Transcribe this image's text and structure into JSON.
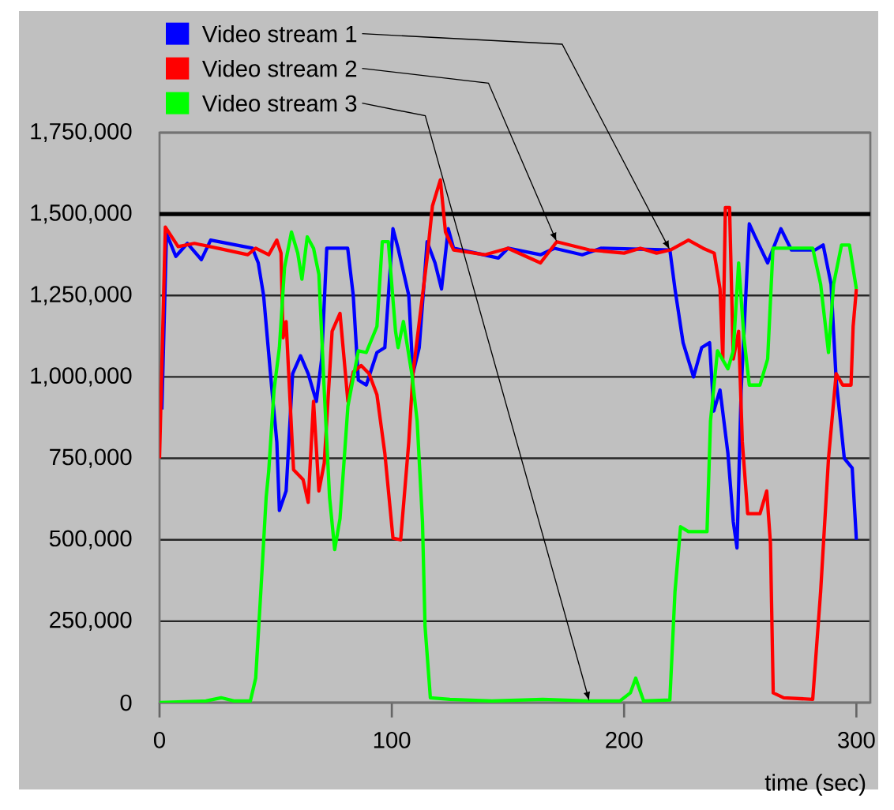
{
  "chart_data": {
    "type": "line",
    "xlabel": "time (sec)",
    "xlim": [
      0,
      306
    ],
    "xticks": [
      0,
      100,
      200,
      300
    ],
    "ylim": [
      0,
      1750000
    ],
    "yticks": [
      {
        "value": 0,
        "label": "0"
      },
      {
        "value": 250000,
        "label": "250,000"
      },
      {
        "value": 500000,
        "label": "500,000"
      },
      {
        "value": 750000,
        "label": "750,000"
      },
      {
        "value": 1000000,
        "label": "1,000,000"
      },
      {
        "value": 1250000,
        "label": "1,250,000"
      },
      {
        "value": 1500000,
        "label": "1,500,000"
      },
      {
        "value": 1750000,
        "label": "1,750,000"
      }
    ],
    "grid": "y",
    "legend": "top left",
    "ref_lines": [
      {
        "axis": "y",
        "value": 1500000,
        "color": "#000000"
      }
    ],
    "series": [
      {
        "name": "Video stream 1",
        "color": "#0000ff",
        "x": [
          1,
          3,
          7,
          12,
          18,
          22,
          40,
          42.5,
          44.8,
          48.2,
          50.5,
          51.6,
          54.5,
          57.3,
          60.7,
          64,
          67.5,
          69.8,
          72,
          81,
          83.4,
          85.6,
          89,
          93.6,
          97,
          100.5,
          102.7,
          107.3,
          109.1,
          111.8,
          115.2,
          118.6,
          121.4,
          124.3,
          126.6,
          145.9,
          150,
          164,
          170,
          182,
          190,
          219.7,
          221.9,
          225.4,
          229.9,
          233.4,
          236.8,
          238.6,
          241.3,
          244.7,
          247,
          248.6,
          250.4,
          253.9,
          256.1,
          261.8,
          267.5,
          272,
          282.3,
          285.7,
          289.1,
          291.3,
          294.8,
          298.2,
          300
        ],
        "values": [
          900000,
          1440000,
          1370000,
          1410000,
          1360000,
          1420000,
          1395000,
          1350000,
          1250000,
          975000,
          800000,
          590000,
          650000,
          1010000,
          1065000,
          1010000,
          925000,
          1055000,
          1395000,
          1395000,
          1250000,
          990000,
          975000,
          1075000,
          1090000,
          1455000,
          1395000,
          1250000,
          1010000,
          1090000,
          1415000,
          1350000,
          1270000,
          1455000,
          1395000,
          1365000,
          1395000,
          1375000,
          1395000,
          1375000,
          1395000,
          1390000,
          1270000,
          1105000,
          1000000,
          1090000,
          1105000,
          895000,
          960000,
          765000,
          555000,
          475000,
          960000,
          1470000,
          1435000,
          1350000,
          1455000,
          1390000,
          1390000,
          1405000,
          1285000,
          990000,
          750000,
          720000,
          500000
        ]
      },
      {
        "name": "Video stream 2",
        "color": "#ff0000",
        "x": [
          0,
          2.5,
          8,
          15,
          25,
          38,
          41.4,
          47,
          50.5,
          52.3,
          53.2,
          54.5,
          56.2,
          57.7,
          61.8,
          64,
          66.3,
          68.6,
          70.9,
          74.3,
          77.7,
          81.1,
          83.4,
          86.8,
          90.2,
          93.6,
          97,
          100.5,
          103.8,
          107.3,
          109.1,
          115.2,
          117.5,
          120.9,
          123.1,
          126.6,
          140,
          150,
          164,
          171,
          185,
          200,
          207,
          214,
          220,
          227.7,
          234,
          238.8,
          241.3,
          242.5,
          243.6,
          245.4,
          247,
          249.3,
          250.9,
          253.2,
          258.5,
          261.4,
          263,
          264.2,
          268.7,
          281.2,
          284.6,
          288,
          291.3,
          294.1,
          297.7,
          298.6,
          300
        ],
        "values": [
          750000,
          1460000,
          1400000,
          1410000,
          1395000,
          1375000,
          1395000,
          1375000,
          1420000,
          1380000,
          1120000,
          1170000,
          925000,
          715000,
          685000,
          615000,
          925000,
          650000,
          735000,
          1140000,
          1195000,
          925000,
          1015000,
          1035000,
          1010000,
          945000,
          765000,
          505000,
          500000,
          800000,
          1010000,
          1365000,
          1525000,
          1605000,
          1445000,
          1390000,
          1375000,
          1395000,
          1350000,
          1415000,
          1390000,
          1380000,
          1395000,
          1380000,
          1390000,
          1420000,
          1395000,
          1380000,
          1270000,
          1055000,
          1520000,
          1520000,
          1055000,
          1140000,
          800000,
          580000,
          580000,
          650000,
          490000,
          30000,
          15000,
          10000,
          340000,
          750000,
          1010000,
          975000,
          975000,
          1155000,
          1270000
        ]
      },
      {
        "name": "Video stream 3",
        "color": "#00ff00",
        "x": [
          0,
          20,
          26.5,
          32,
          39.1,
          41.4,
          43.6,
          45.9,
          47,
          49.3,
          51.6,
          53.8,
          56.8,
          59.5,
          61.3,
          63.6,
          66.3,
          68.6,
          70.9,
          73.2,
          75.4,
          77.7,
          81.1,
          85.6,
          89,
          93.6,
          95.9,
          98.5,
          101.6,
          102.7,
          105,
          108.6,
          110.9,
          113.2,
          114.3,
          116.6,
          125,
          143,
          165,
          185,
          198.2,
          202.7,
          205,
          208.4,
          219.7,
          221.9,
          224.3,
          227.7,
          235.7,
          237.2,
          240.2,
          244.7,
          247,
          249.3,
          251.6,
          253.9,
          258.5,
          261.8,
          264.1,
          281.2,
          284.6,
          288,
          290.2,
          293.6,
          297,
          300
        ],
        "values": [
          0,
          5000,
          15000,
          5000,
          5000,
          75000,
          340000,
          630000,
          710000,
          960000,
          1090000,
          1335000,
          1445000,
          1380000,
          1300000,
          1430000,
          1395000,
          1315000,
          960000,
          630000,
          470000,
          565000,
          910000,
          1080000,
          1075000,
          1155000,
          1415000,
          1415000,
          1140000,
          1090000,
          1170000,
          1010000,
          865000,
          555000,
          235000,
          15000,
          10000,
          5000,
          10000,
          5000,
          5000,
          30000,
          75000,
          5000,
          8000,
          340000,
          540000,
          525000,
          525000,
          865000,
          1080000,
          1025000,
          1080000,
          1350000,
          1120000,
          975000,
          975000,
          1055000,
          1395000,
          1395000,
          1285000,
          1075000,
          1285000,
          1405000,
          1405000,
          1270000
        ]
      }
    ]
  }
}
